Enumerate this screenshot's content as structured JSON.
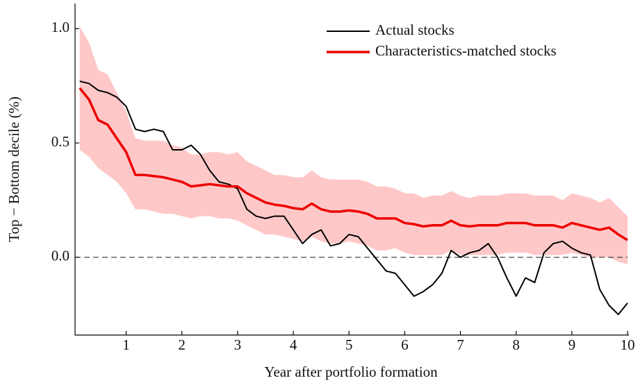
{
  "chart_data": {
    "type": "line",
    "xlabel": "Year after portfolio formation",
    "ylabel": "Top − Bottom decile (%)",
    "x": [
      0.167,
      0.333,
      0.5,
      0.667,
      0.833,
      1,
      1.167,
      1.333,
      1.5,
      1.667,
      1.833,
      2,
      2.167,
      2.333,
      2.5,
      2.667,
      2.833,
      3,
      3.167,
      3.333,
      3.5,
      3.667,
      3.833,
      4,
      4.167,
      4.333,
      4.5,
      4.667,
      4.833,
      5,
      5.167,
      5.333,
      5.5,
      5.667,
      5.833,
      6,
      6.167,
      6.333,
      6.5,
      6.667,
      6.833,
      7,
      7.167,
      7.333,
      7.5,
      7.667,
      7.833,
      8,
      8.167,
      8.333,
      8.5,
      8.667,
      8.833,
      9,
      9.167,
      9.333,
      9.5,
      9.667,
      9.833,
      10
    ],
    "series": [
      {
        "name": "Actual stocks",
        "color": "#000000",
        "width": 2,
        "values": [
          0.77,
          0.76,
          0.73,
          0.72,
          0.7,
          0.66,
          0.56,
          0.55,
          0.56,
          0.55,
          0.47,
          0.47,
          0.49,
          0.45,
          0.38,
          0.33,
          0.32,
          0.3,
          0.21,
          0.18,
          0.17,
          0.18,
          0.18,
          0.12,
          0.06,
          0.1,
          0.12,
          0.05,
          0.06,
          0.1,
          0.09,
          0.04,
          -0.01,
          -0.06,
          -0.07,
          -0.12,
          -0.17,
          -0.15,
          -0.12,
          -0.07,
          0.03,
          0.0,
          0.02,
          0.03,
          0.06,
          0.0,
          -0.09,
          -0.17,
          -0.09,
          -0.11,
          0.02,
          0.06,
          0.07,
          0.04,
          0.02,
          0.01,
          -0.14,
          -0.21,
          -0.25,
          -0.2
        ]
      },
      {
        "name": "Characteristics-matched stocks",
        "color": "#ee0000",
        "width": 3.5,
        "band_color": "#ffc8c8",
        "values": [
          0.74,
          0.69,
          0.6,
          0.58,
          0.52,
          0.46,
          0.36,
          0.36,
          0.355,
          0.35,
          0.34,
          0.33,
          0.31,
          0.315,
          0.32,
          0.315,
          0.31,
          0.31,
          0.28,
          0.26,
          0.24,
          0.23,
          0.225,
          0.215,
          0.21,
          0.235,
          0.21,
          0.2,
          0.2,
          0.205,
          0.2,
          0.19,
          0.17,
          0.17,
          0.17,
          0.15,
          0.145,
          0.135,
          0.14,
          0.14,
          0.16,
          0.14,
          0.135,
          0.14,
          0.14,
          0.14,
          0.15,
          0.15,
          0.15,
          0.14,
          0.14,
          0.14,
          0.13,
          0.15,
          0.14,
          0.13,
          0.12,
          0.13,
          0.1,
          0.075
        ],
        "lower": [
          0.47,
          0.44,
          0.39,
          0.36,
          0.33,
          0.28,
          0.21,
          0.21,
          0.2,
          0.19,
          0.19,
          0.18,
          0.17,
          0.18,
          0.18,
          0.17,
          0.17,
          0.16,
          0.14,
          0.12,
          0.1,
          0.1,
          0.09,
          0.08,
          0.07,
          0.09,
          0.07,
          0.06,
          0.06,
          0.07,
          0.06,
          0.05,
          0.03,
          0.03,
          0.04,
          0.02,
          0.01,
          0.01,
          0.01,
          0.01,
          0.03,
          0.01,
          0.01,
          0.01,
          0.01,
          0.01,
          0.02,
          0.02,
          0.02,
          0.01,
          0.01,
          0.01,
          0.01,
          0.02,
          0.01,
          0.0,
          0.0,
          0.0,
          -0.02,
          -0.03
        ],
        "upper": [
          1.01,
          0.94,
          0.82,
          0.8,
          0.72,
          0.64,
          0.52,
          0.51,
          0.51,
          0.51,
          0.49,
          0.48,
          0.45,
          0.45,
          0.46,
          0.46,
          0.45,
          0.46,
          0.42,
          0.4,
          0.38,
          0.36,
          0.36,
          0.35,
          0.35,
          0.38,
          0.35,
          0.34,
          0.34,
          0.34,
          0.34,
          0.33,
          0.31,
          0.31,
          0.3,
          0.28,
          0.28,
          0.26,
          0.27,
          0.27,
          0.29,
          0.27,
          0.26,
          0.27,
          0.27,
          0.27,
          0.28,
          0.28,
          0.28,
          0.27,
          0.27,
          0.27,
          0.25,
          0.28,
          0.27,
          0.26,
          0.24,
          0.26,
          0.22,
          0.18
        ]
      }
    ],
    "xlim": [
      0.083,
      10
    ],
    "ylim": [
      -0.34,
      1.11
    ],
    "xticks": [
      1,
      2,
      3,
      4,
      5,
      6,
      7,
      8,
      9,
      10
    ],
    "yticks": [
      {
        "value": 0,
        "label": "0.0"
      },
      {
        "value": 0.5,
        "label": "0.5"
      },
      {
        "value": 1,
        "label": "1.0"
      }
    ],
    "hline": 0,
    "grid": false,
    "legend": "upper right"
  }
}
